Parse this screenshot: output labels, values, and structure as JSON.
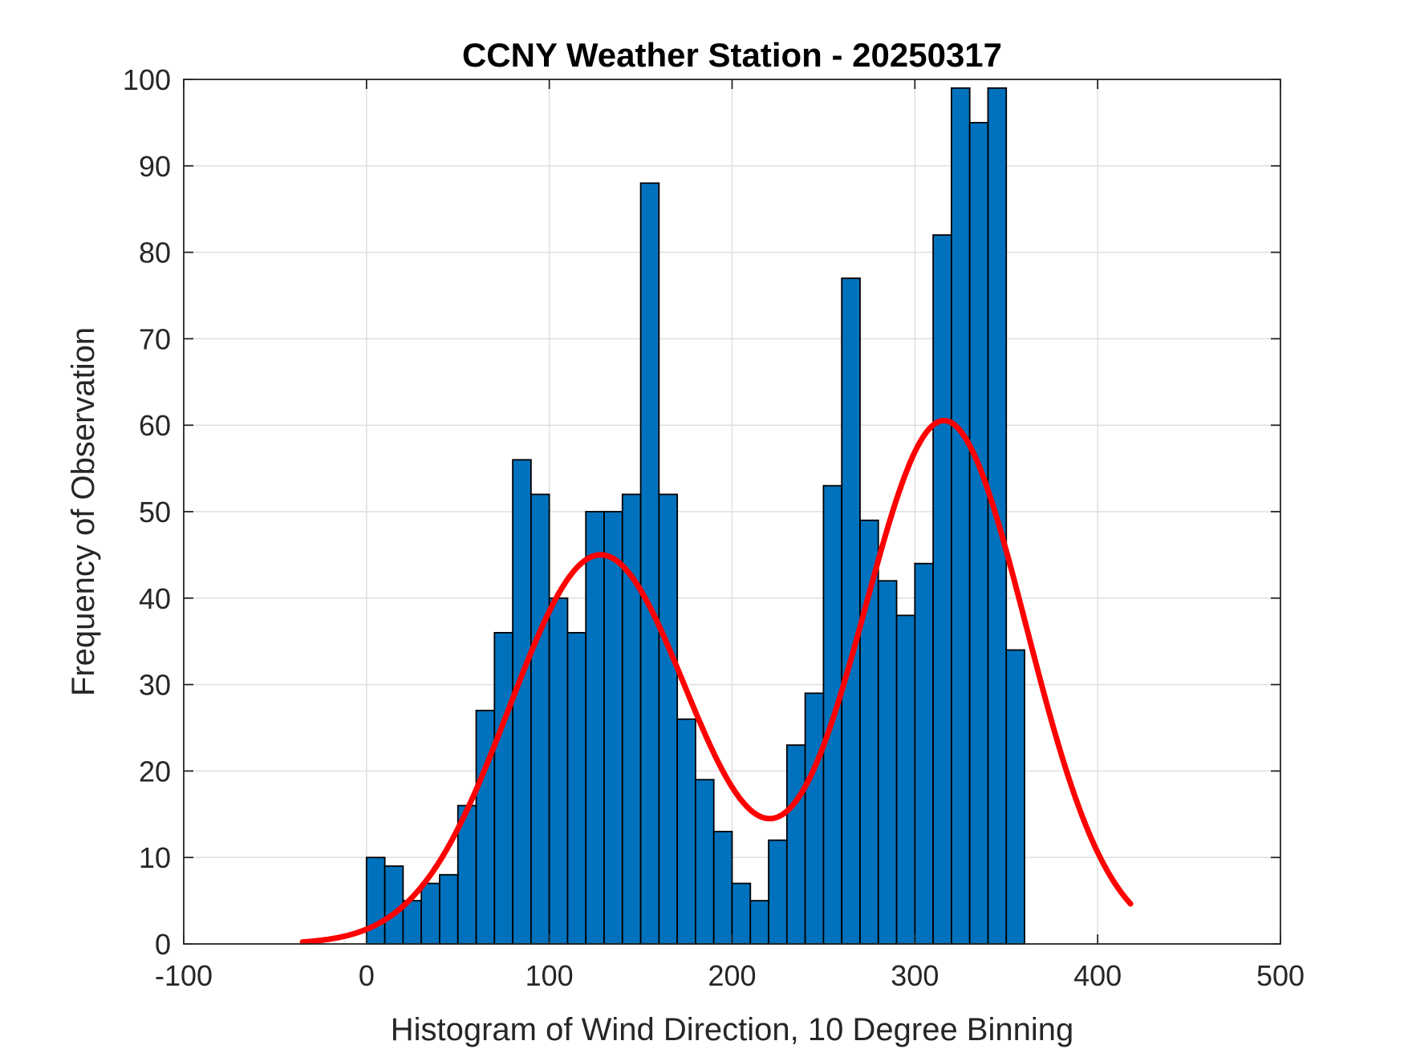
{
  "chart_data": {
    "type": "bar",
    "title": "CCNY Weather Station - 20250317",
    "xlabel": "Histogram of Wind Direction, 10 Degree Binning",
    "ylabel": "Frequency of Observation",
    "xlim": [
      -100,
      500
    ],
    "ylim": [
      0,
      100
    ],
    "grid": true,
    "xticks": [
      -100,
      0,
      100,
      200,
      300,
      400,
      500
    ],
    "yticks": [
      0,
      10,
      20,
      30,
      40,
      50,
      60,
      70,
      80,
      90,
      100
    ],
    "xtick_labels": [
      "-100",
      "0",
      "100",
      "200",
      "300",
      "400",
      "500"
    ],
    "ytick_labels": [
      "0",
      "10",
      "20",
      "30",
      "40",
      "50",
      "60",
      "70",
      "80",
      "90",
      "100"
    ],
    "bin_width": 10,
    "bin_starts": [
      0,
      10,
      20,
      30,
      40,
      50,
      60,
      70,
      80,
      90,
      100,
      110,
      120,
      130,
      140,
      150,
      160,
      170,
      180,
      190,
      200,
      210,
      220,
      230,
      240,
      250,
      260,
      270,
      280,
      290,
      300,
      310,
      320,
      330,
      340,
      350
    ],
    "values": [
      10,
      9,
      5,
      7,
      8,
      16,
      27,
      36,
      56,
      52,
      40,
      36,
      50,
      50,
      52,
      88,
      52,
      26,
      19,
      13,
      7,
      5,
      12,
      23,
      29,
      53,
      77,
      49,
      42,
      38,
      44,
      82,
      99,
      95,
      99,
      34
    ],
    "bar_color": "#0072BD",
    "fit_curve": {
      "color": "#FF0000",
      "x_range": [
        -35,
        418
      ],
      "components": [
        {
          "amplitude": 45.0,
          "mean": 128,
          "sigma": 50
        },
        {
          "amplitude": 60.5,
          "mean": 316,
          "sigma": 45
        }
      ]
    }
  }
}
